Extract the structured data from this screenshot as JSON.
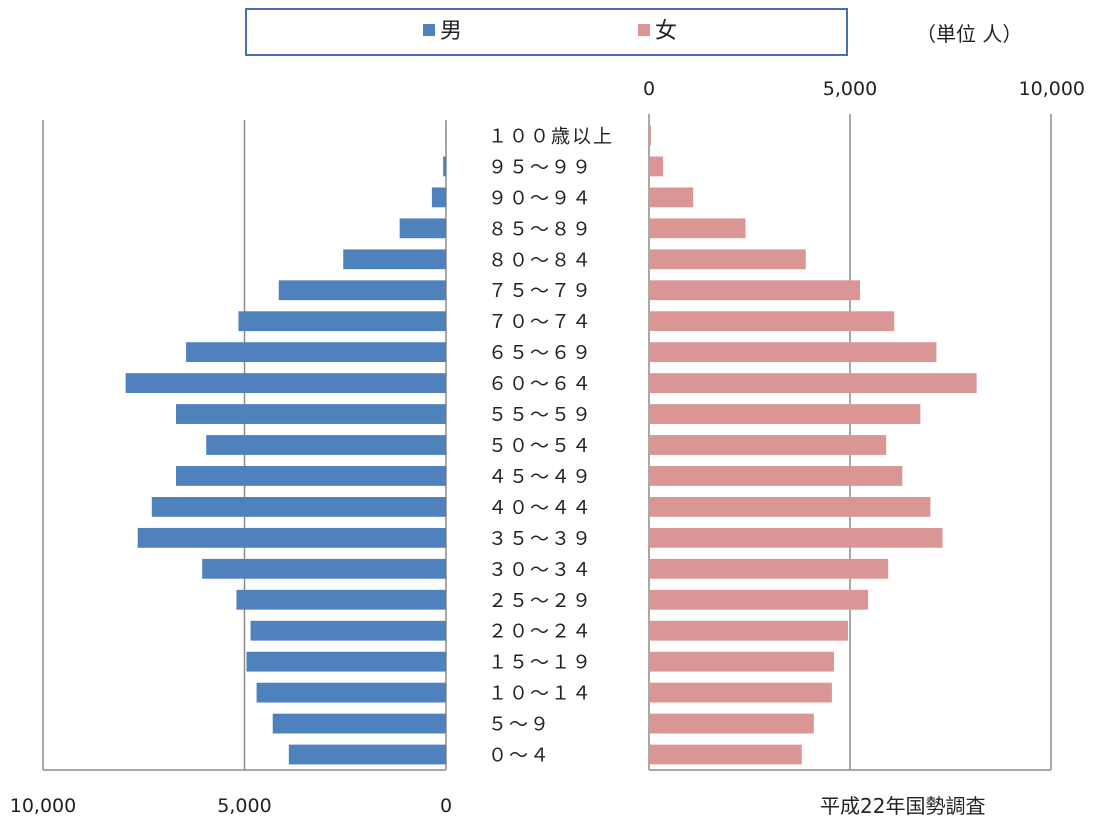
{
  "legend": {
    "male_label": "男",
    "female_label": "女"
  },
  "unit_label": "（単位 人）",
  "source_label": "平成22年国勢調査",
  "colors": {
    "male": "#4f81bd",
    "female": "#d99694",
    "axis": "#8c8c8c",
    "legend_border": "#4a6fb4"
  },
  "chart_data": {
    "type": "bar",
    "orientation": "horizontal",
    "layout": "population-pyramid",
    "title": "",
    "categories": [
      "０～４",
      "５～９",
      "１０～１４",
      "１５～１９",
      "２０～２４",
      "２５～２９",
      "３０～３４",
      "３５～３９",
      "４０～４４",
      "４５～４９",
      "５０～５４",
      "５５～５９",
      "６０～６４",
      "６５～６９",
      "７０～７４",
      "７５～７９",
      "８０～８４",
      "８５～８９",
      "９０～９４",
      "９５～９９",
      "１００歳以上"
    ],
    "series": [
      {
        "name": "男",
        "values": [
          3900,
          4300,
          4700,
          4950,
          4850,
          5200,
          6050,
          7650,
          7300,
          6700,
          5950,
          6700,
          7950,
          6450,
          5150,
          4150,
          2550,
          1150,
          350,
          70,
          10
        ]
      },
      {
        "name": "女",
        "values": [
          3800,
          4100,
          4550,
          4600,
          4950,
          5450,
          5950,
          7300,
          7000,
          6300,
          5900,
          6750,
          8150,
          7150,
          6100,
          5250,
          3900,
          2400,
          1100,
          350,
          50
        ]
      }
    ],
    "x_ticks_left": [
      "10,000",
      "5,000",
      "0"
    ],
    "x_ticks_right": [
      "0",
      "5,000",
      "10,000"
    ],
    "xlim": [
      0,
      10000
    ],
    "grid": true,
    "legend_position": "top"
  }
}
